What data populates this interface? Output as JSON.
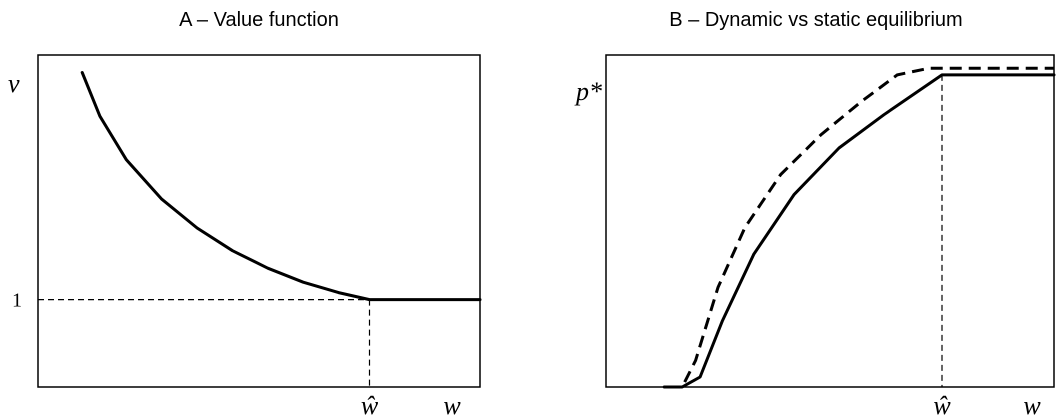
{
  "chart_data": [
    {
      "type": "line",
      "title": "A – Value function",
      "ylabel": "v",
      "xlabel": "w",
      "xlim": [
        0,
        1
      ],
      "ylim": [
        0,
        3.8
      ],
      "ytick_label": "1",
      "ytick_value": 1,
      "xtick_label": "ŵ",
      "xtick_value": 0.75,
      "series": [
        {
          "style": "solid",
          "x": [
            0.1,
            0.14,
            0.2,
            0.28,
            0.36,
            0.44,
            0.52,
            0.6,
            0.68,
            0.75,
            0.85,
            1.0
          ],
          "y": [
            3.6,
            3.1,
            2.6,
            2.15,
            1.82,
            1.56,
            1.36,
            1.2,
            1.08,
            1.0,
            1.0,
            1.0
          ]
        }
      ]
    },
    {
      "type": "line",
      "title": "B – Dynamic vs static equilibrium",
      "ylabel": "p*",
      "xlabel": "w",
      "xlim": [
        0,
        1
      ],
      "ylim": [
        0,
        1
      ],
      "xtick_label": "ŵ",
      "xtick_value": 0.75,
      "series": [
        {
          "style": "solid",
          "x": [
            0.13,
            0.17,
            0.21,
            0.26,
            0.33,
            0.42,
            0.52,
            0.62,
            0.75,
            1.0
          ],
          "y": [
            0.0,
            0.0,
            0.03,
            0.2,
            0.4,
            0.58,
            0.72,
            0.82,
            0.94,
            0.94
          ]
        },
        {
          "style": "dashed",
          "x": [
            0.14,
            0.17,
            0.2,
            0.25,
            0.31,
            0.39,
            0.48,
            0.57,
            0.65,
            0.72,
            1.0
          ],
          "y": [
            0.0,
            0.0,
            0.08,
            0.3,
            0.48,
            0.64,
            0.76,
            0.86,
            0.94,
            0.96,
            0.96
          ]
        }
      ]
    }
  ]
}
